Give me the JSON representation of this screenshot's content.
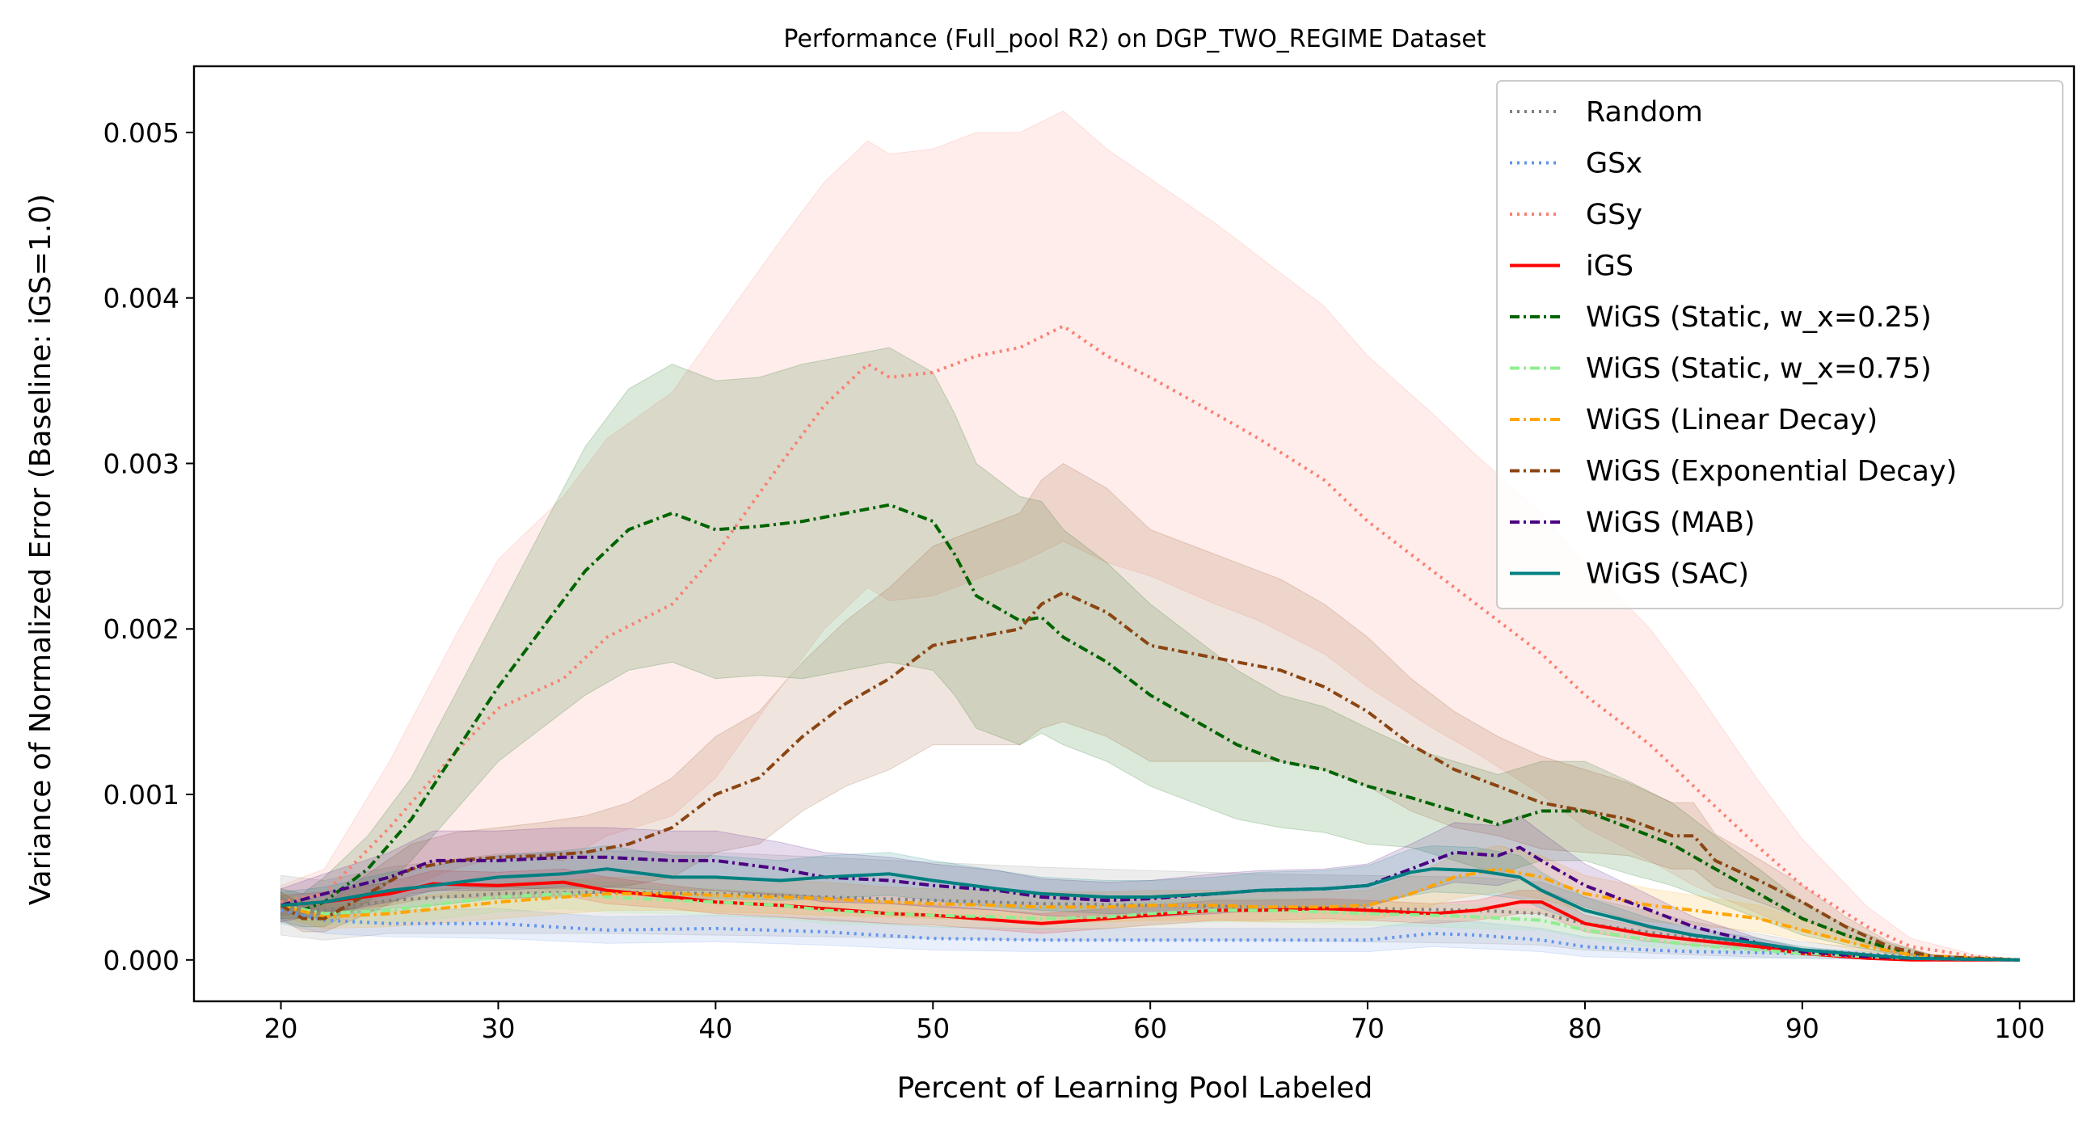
{
  "chart_data": {
    "type": "line",
    "title": "Performance (Full_pool R2) on DGP_TWO_REGIME Dataset",
    "xlabel": "Percent of Learning Pool Labeled",
    "ylabel": "Variance of Normalized Error (Baseline: iGS=1.0)",
    "xlim": [
      16,
      102.5
    ],
    "ylim": [
      -0.00025,
      0.0054
    ],
    "xticks": [
      20,
      30,
      40,
      50,
      60,
      70,
      80,
      90,
      100
    ],
    "xtick_labels": [
      "20",
      "30",
      "40",
      "50",
      "60",
      "70",
      "80",
      "90",
      "100"
    ],
    "yticks": [
      0,
      0.001,
      0.002,
      0.003,
      0.004,
      0.005
    ],
    "ytick_labels": [
      "0.000",
      "0.001",
      "0.002",
      "0.003",
      "0.004",
      "0.005"
    ],
    "grid": false,
    "legend_position": "top-right",
    "series": [
      {
        "name": "Random",
        "color": "#808080",
        "style": "dotted",
        "x": [
          20,
          22,
          25,
          30,
          35,
          40,
          45,
          50,
          55,
          60,
          65,
          70,
          75,
          78,
          80,
          85,
          90,
          95,
          100
        ],
        "y": [
          0.00033,
          0.0003,
          0.00036,
          0.0004,
          0.00041,
          0.0004,
          0.00038,
          0.00036,
          0.00034,
          0.00033,
          0.00032,
          0.00031,
          0.0003,
          0.00028,
          0.00022,
          0.00013,
          6e-05,
          2e-05,
          0.0
        ],
        "band": [
          0.00018,
          0.00018,
          0.0002,
          0.00024,
          0.00025,
          0.00025,
          0.00024,
          0.00023,
          0.00022,
          0.00021,
          0.0002,
          0.0002,
          0.0002,
          0.00019,
          0.00016,
          0.0001,
          5e-05,
          2e-05,
          0.0
        ]
      },
      {
        "name": "GSx",
        "color": "#6495ED",
        "style": "dotted",
        "x": [
          20,
          22,
          25,
          30,
          35,
          40,
          45,
          50,
          55,
          60,
          65,
          70,
          73,
          75,
          78,
          80,
          83,
          85,
          90,
          95,
          100
        ],
        "y": [
          0.0003,
          0.00024,
          0.00022,
          0.00022,
          0.00018,
          0.00019,
          0.00017,
          0.00013,
          0.00012,
          0.00012,
          0.00012,
          0.00012,
          0.00016,
          0.00015,
          0.00012,
          8e-05,
          6e-05,
          5e-05,
          4e-05,
          2e-05,
          0.0
        ],
        "band": [
          8e-05,
          8e-05,
          8e-05,
          9e-05,
          8e-05,
          8e-05,
          8e-05,
          7e-05,
          7e-05,
          7e-05,
          7e-05,
          7e-05,
          8e-05,
          8e-05,
          7e-05,
          6e-05,
          5e-05,
          4e-05,
          3e-05,
          2e-05,
          0.0
        ]
      },
      {
        "name": "GSy",
        "color": "#FA8072",
        "style": "dotted",
        "x": [
          20,
          22,
          25,
          28,
          30,
          33,
          35,
          38,
          40,
          43,
          45,
          47,
          48,
          50,
          52,
          54,
          56,
          58,
          60,
          63,
          65,
          68,
          70,
          73,
          75,
          78,
          80,
          83,
          85,
          88,
          90,
          93,
          95,
          98,
          100
        ],
        "y": [
          0.00035,
          0.0004,
          0.0008,
          0.00125,
          0.00152,
          0.0017,
          0.00195,
          0.00215,
          0.00245,
          0.003,
          0.00335,
          0.0036,
          0.00352,
          0.00355,
          0.00365,
          0.0037,
          0.00383,
          0.00365,
          0.00352,
          0.0033,
          0.00315,
          0.0029,
          0.00265,
          0.00235,
          0.00215,
          0.00185,
          0.0016,
          0.0013,
          0.00105,
          0.00068,
          0.00045,
          0.0002,
          8e-05,
          2e-05,
          0.0
        ],
        "band": [
          0.0001,
          0.00015,
          0.0004,
          0.0007,
          0.0009,
          0.0011,
          0.0012,
          0.00128,
          0.00135,
          0.00135,
          0.00135,
          0.00135,
          0.00135,
          0.00135,
          0.00135,
          0.0013,
          0.0013,
          0.00125,
          0.0012,
          0.00115,
          0.0011,
          0.00105,
          0.001,
          0.00095,
          0.0009,
          0.00085,
          0.0008,
          0.0007,
          0.0006,
          0.0004,
          0.00028,
          0.00012,
          5e-05,
          1e-05,
          0.0
        ]
      },
      {
        "name": "iGS",
        "color": "#FF0000",
        "style": "solid",
        "x": [
          20,
          22,
          25,
          27,
          30,
          33,
          35,
          38,
          40,
          43,
          45,
          48,
          50,
          53,
          55,
          58,
          60,
          63,
          65,
          68,
          70,
          73,
          75,
          77,
          78,
          80,
          83,
          85,
          88,
          90,
          93,
          95,
          100
        ],
        "y": [
          0.00033,
          0.00035,
          0.0004,
          0.00046,
          0.00045,
          0.00047,
          0.00042,
          0.00038,
          0.00035,
          0.00033,
          0.00031,
          0.00028,
          0.00027,
          0.00024,
          0.00022,
          0.00025,
          0.00027,
          0.0003,
          0.0003,
          0.00031,
          0.0003,
          0.00028,
          0.0003,
          0.00035,
          0.00035,
          0.00022,
          0.00015,
          0.00012,
          8e-05,
          4e-05,
          1e-05,
          0.0,
          0.0
        ],
        "band": [
          6e-05,
          6e-05,
          7e-05,
          8e-05,
          8e-05,
          8e-05,
          8e-05,
          7e-05,
          7e-05,
          7e-05,
          7e-05,
          6e-05,
          6e-05,
          6e-05,
          6e-05,
          6e-05,
          6e-05,
          6e-05,
          6e-05,
          6e-05,
          6e-05,
          6e-05,
          6e-05,
          7e-05,
          7e-05,
          5e-05,
          4e-05,
          3e-05,
          2e-05,
          1e-05,
          0.0,
          0.0,
          0.0
        ]
      },
      {
        "name": "WiGS (Static, w_x=0.25)",
        "color": "#006400",
        "style": "dashdot",
        "x": [
          20,
          21,
          22,
          24,
          26,
          28,
          30,
          32,
          34,
          36,
          38,
          40,
          42,
          44,
          46,
          48,
          50,
          51,
          52,
          54,
          55,
          56,
          58,
          60,
          62,
          64,
          66,
          68,
          70,
          72,
          74,
          76,
          78,
          80,
          82,
          84,
          86,
          88,
          90,
          92,
          94,
          96,
          100
        ],
        "y": [
          0.00033,
          0.0003,
          0.00035,
          0.00055,
          0.00085,
          0.00125,
          0.00165,
          0.002,
          0.00235,
          0.0026,
          0.0027,
          0.0026,
          0.00262,
          0.00265,
          0.0027,
          0.00275,
          0.00265,
          0.00245,
          0.0022,
          0.00205,
          0.00207,
          0.00195,
          0.0018,
          0.0016,
          0.00145,
          0.0013,
          0.0012,
          0.00115,
          0.00105,
          0.00098,
          0.0009,
          0.00082,
          0.0009,
          0.0009,
          0.0008,
          0.0007,
          0.00055,
          0.0004,
          0.00025,
          0.00015,
          7e-05,
          2e-05,
          0.0
        ],
        "band": [
          0.0001,
          0.0001,
          0.00015,
          0.0002,
          0.00025,
          0.00035,
          0.00045,
          0.0006,
          0.00075,
          0.00085,
          0.0009,
          0.0009,
          0.0009,
          0.00095,
          0.00095,
          0.00095,
          0.0009,
          0.00085,
          0.0008,
          0.00075,
          0.0007,
          0.00065,
          0.0006,
          0.00055,
          0.0005,
          0.00045,
          0.0004,
          0.00038,
          0.00035,
          0.0003,
          0.0003,
          0.0003,
          0.0003,
          0.0003,
          0.00028,
          0.00025,
          0.0002,
          0.00015,
          0.0001,
          6e-05,
          3e-05,
          1e-05,
          0.0
        ]
      },
      {
        "name": "WiGS (Static, w_x=0.75)",
        "color": "#90EE90",
        "style": "dashdot",
        "x": [
          20,
          22,
          25,
          28,
          30,
          33,
          35,
          38,
          40,
          43,
          45,
          48,
          50,
          53,
          55,
          58,
          60,
          63,
          65,
          68,
          70,
          73,
          75,
          78,
          80,
          83,
          85,
          88,
          90,
          93,
          95,
          100
        ],
        "y": [
          0.00033,
          0.00028,
          0.0003,
          0.00035,
          0.00038,
          0.0004,
          0.00038,
          0.00036,
          0.00035,
          0.00033,
          0.0003,
          0.00028,
          0.00027,
          0.00026,
          0.00025,
          0.00026,
          0.00028,
          0.0003,
          0.0003,
          0.00029,
          0.00028,
          0.00027,
          0.00026,
          0.00024,
          0.00018,
          0.00012,
          9e-05,
          6e-05,
          4e-05,
          2e-05,
          1e-05,
          0.0
        ],
        "band": [
          7e-05,
          7e-05,
          8e-05,
          9e-05,
          9e-05,
          9e-05,
          9e-05,
          8e-05,
          8e-05,
          8e-05,
          8e-05,
          7e-05,
          7e-05,
          7e-05,
          7e-05,
          7e-05,
          7e-05,
          7e-05,
          7e-05,
          7e-05,
          7e-05,
          7e-05,
          7e-05,
          6e-05,
          5e-05,
          4e-05,
          3e-05,
          2e-05,
          2e-05,
          1e-05,
          0.0,
          0.0
        ]
      },
      {
        "name": "WiGS (Linear Decay)",
        "color": "#FFA500",
        "style": "dashdot",
        "x": [
          20,
          22,
          25,
          28,
          30,
          33,
          35,
          38,
          40,
          43,
          45,
          48,
          50,
          53,
          55,
          58,
          60,
          63,
          65,
          68,
          70,
          72,
          74,
          76,
          78,
          80,
          83,
          85,
          88,
          90,
          93,
          95,
          100
        ],
        "y": [
          0.00033,
          0.00026,
          0.00028,
          0.00032,
          0.00035,
          0.00038,
          0.0004,
          0.0004,
          0.00039,
          0.00038,
          0.00037,
          0.00035,
          0.00034,
          0.00033,
          0.00032,
          0.00032,
          0.00033,
          0.00033,
          0.00032,
          0.00032,
          0.00033,
          0.0004,
          0.0005,
          0.00055,
          0.0005,
          0.0004,
          0.00033,
          0.0003,
          0.00025,
          0.00018,
          8e-05,
          3e-05,
          0.0
        ],
        "band": [
          7e-05,
          7e-05,
          8e-05,
          9e-05,
          0.0001,
          0.0001,
          0.0001,
          0.0001,
          0.0001,
          0.0001,
          0.0001,
          9e-05,
          9e-05,
          9e-05,
          9e-05,
          9e-05,
          9e-05,
          9e-05,
          9e-05,
          9e-05,
          9e-05,
          0.00011,
          0.00013,
          0.00014,
          0.00013,
          0.00011,
          0.0001,
          9e-05,
          8e-05,
          6e-05,
          3e-05,
          1e-05,
          0.0
        ]
      },
      {
        "name": "WiGS (Exponential Decay)",
        "color": "#8B4513",
        "style": "dashdot",
        "x": [
          20,
          21,
          22,
          24,
          26,
          28,
          30,
          32,
          34,
          36,
          38,
          40,
          42,
          44,
          46,
          48,
          50,
          52,
          54,
          55,
          56,
          58,
          60,
          62,
          64,
          66,
          68,
          70,
          72,
          74,
          76,
          78,
          80,
          82,
          84,
          85,
          86,
          88,
          90,
          92,
          94,
          96,
          100
        ],
        "y": [
          0.00033,
          0.00025,
          0.00025,
          0.0004,
          0.00055,
          0.0006,
          0.00062,
          0.00063,
          0.00065,
          0.0007,
          0.0008,
          0.001,
          0.0011,
          0.00135,
          0.00155,
          0.0017,
          0.0019,
          0.00195,
          0.002,
          0.00215,
          0.00222,
          0.0021,
          0.0019,
          0.00185,
          0.0018,
          0.00175,
          0.00165,
          0.0015,
          0.0013,
          0.00115,
          0.00105,
          0.00095,
          0.0009,
          0.00085,
          0.00075,
          0.00075,
          0.0006,
          0.00048,
          0.00035,
          0.0002,
          8e-05,
          2e-05,
          0.0
        ],
        "band": [
          8e-05,
          8e-05,
          8e-05,
          0.00012,
          0.00015,
          0.00017,
          0.00018,
          0.0002,
          0.00022,
          0.00025,
          0.0003,
          0.00035,
          0.0004,
          0.00045,
          0.0005,
          0.00055,
          0.0006,
          0.00065,
          0.0007,
          0.00075,
          0.00078,
          0.00075,
          0.0007,
          0.00065,
          0.0006,
          0.00055,
          0.0005,
          0.00045,
          0.0004,
          0.00035,
          0.0003,
          0.00028,
          0.00025,
          0.00022,
          0.0002,
          0.0002,
          0.00016,
          0.00013,
          0.0001,
          6e-05,
          3e-05,
          1e-05,
          0.0
        ]
      },
      {
        "name": "WiGS (MAB)",
        "color": "#4B0082",
        "style": "dashdot",
        "x": [
          20,
          22,
          25,
          27,
          30,
          33,
          35,
          38,
          40,
          43,
          45,
          48,
          50,
          53,
          55,
          58,
          60,
          63,
          65,
          68,
          70,
          72,
          74,
          76,
          77,
          78,
          80,
          83,
          85,
          88,
          90,
          93,
          95,
          100
        ],
        "y": [
          0.00033,
          0.0004,
          0.0005,
          0.0006,
          0.0006,
          0.00062,
          0.00062,
          0.0006,
          0.0006,
          0.00055,
          0.0005,
          0.00048,
          0.00045,
          0.00042,
          0.00038,
          0.00036,
          0.00037,
          0.0004,
          0.00042,
          0.00043,
          0.00045,
          0.00055,
          0.00065,
          0.00063,
          0.00068,
          0.0006,
          0.00045,
          0.0003,
          0.0002,
          0.0001,
          5e-05,
          2e-05,
          1e-05,
          0.0
        ],
        "band": [
          0.0001,
          0.00012,
          0.00015,
          0.00018,
          0.00018,
          0.00018,
          0.00018,
          0.00018,
          0.00018,
          0.00016,
          0.00015,
          0.00014,
          0.00013,
          0.00012,
          0.00011,
          0.00011,
          0.00011,
          0.00012,
          0.00012,
          0.00012,
          0.00013,
          0.00015,
          0.00018,
          0.00018,
          0.00019,
          0.00017,
          0.00013,
          9e-05,
          6e-05,
          3e-05,
          2e-05,
          1e-05,
          0.0,
          0.0
        ]
      },
      {
        "name": "WiGS (SAC)",
        "color": "#008080",
        "style": "solid",
        "x": [
          20,
          22,
          25,
          27,
          30,
          33,
          35,
          38,
          40,
          43,
          45,
          48,
          50,
          53,
          55,
          58,
          60,
          63,
          65,
          68,
          70,
          72,
          73,
          75,
          77,
          78,
          80,
          83,
          85,
          88,
          90,
          93,
          95,
          100
        ],
        "y": [
          0.00033,
          0.00035,
          0.00042,
          0.00045,
          0.0005,
          0.00052,
          0.00055,
          0.0005,
          0.0005,
          0.00048,
          0.0005,
          0.00052,
          0.00048,
          0.00043,
          0.0004,
          0.00038,
          0.00038,
          0.0004,
          0.00042,
          0.00043,
          0.00045,
          0.00053,
          0.00055,
          0.00054,
          0.0005,
          0.00042,
          0.0003,
          0.0002,
          0.00015,
          0.0001,
          6e-05,
          3e-05,
          1e-05,
          0.0
        ],
        "band": [
          8e-05,
          9e-05,
          0.00011,
          0.00012,
          0.00013,
          0.00014,
          0.00014,
          0.00013,
          0.00013,
          0.00012,
          0.00013,
          0.00013,
          0.00012,
          0.00011,
          0.0001,
          0.0001,
          0.0001,
          0.0001,
          0.00011,
          0.00011,
          0.00012,
          0.00014,
          0.00014,
          0.00014,
          0.00013,
          0.00011,
          8e-05,
          5e-05,
          4e-05,
          3e-05,
          2e-05,
          1e-05,
          0.0,
          0.0
        ]
      }
    ]
  }
}
